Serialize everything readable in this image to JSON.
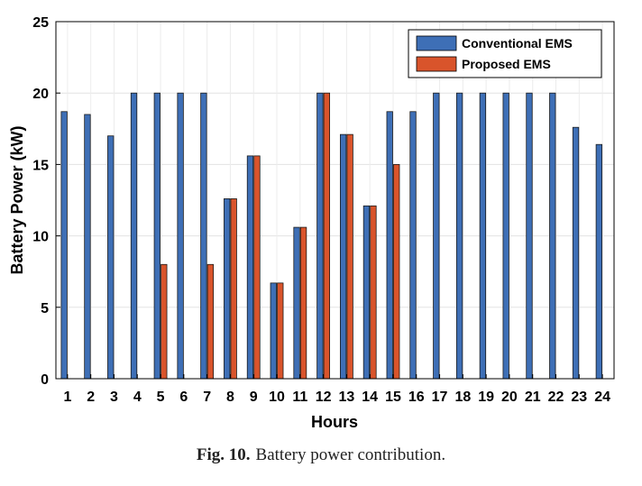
{
  "chart_data": {
    "type": "bar",
    "title": "",
    "xlabel": "Hours",
    "ylabel": "Battery Power (kW)",
    "ylim": [
      0,
      25
    ],
    "yticks": [
      0,
      5,
      10,
      15,
      20,
      25
    ],
    "grid": true,
    "legend_position": "top-right",
    "categories": [
      "1",
      "2",
      "3",
      "4",
      "5",
      "6",
      "7",
      "8",
      "9",
      "10",
      "11",
      "12",
      "13",
      "14",
      "15",
      "16",
      "17",
      "18",
      "19",
      "20",
      "21",
      "22",
      "23",
      "24"
    ],
    "series": [
      {
        "name": "Conventional EMS",
        "color": "#3E6FB6",
        "values": [
          18.7,
          18.5,
          17.0,
          20.0,
          20.0,
          20.0,
          20.0,
          12.6,
          15.6,
          6.7,
          10.6,
          20.0,
          17.1,
          12.1,
          18.7,
          18.7,
          20.0,
          20.0,
          20.0,
          20.0,
          20.0,
          20.0,
          17.6,
          16.4
        ]
      },
      {
        "name": "Proposed EMS",
        "color": "#D9542B",
        "values": [
          0,
          0,
          0,
          0,
          8.0,
          0,
          8.0,
          12.6,
          15.6,
          6.7,
          10.6,
          20.0,
          17.1,
          12.1,
          15.0,
          0,
          0,
          0,
          0,
          0,
          0,
          0,
          0,
          0
        ]
      }
    ]
  },
  "caption": {
    "label": "Fig. 10.",
    "text": "Battery power contribution."
  }
}
